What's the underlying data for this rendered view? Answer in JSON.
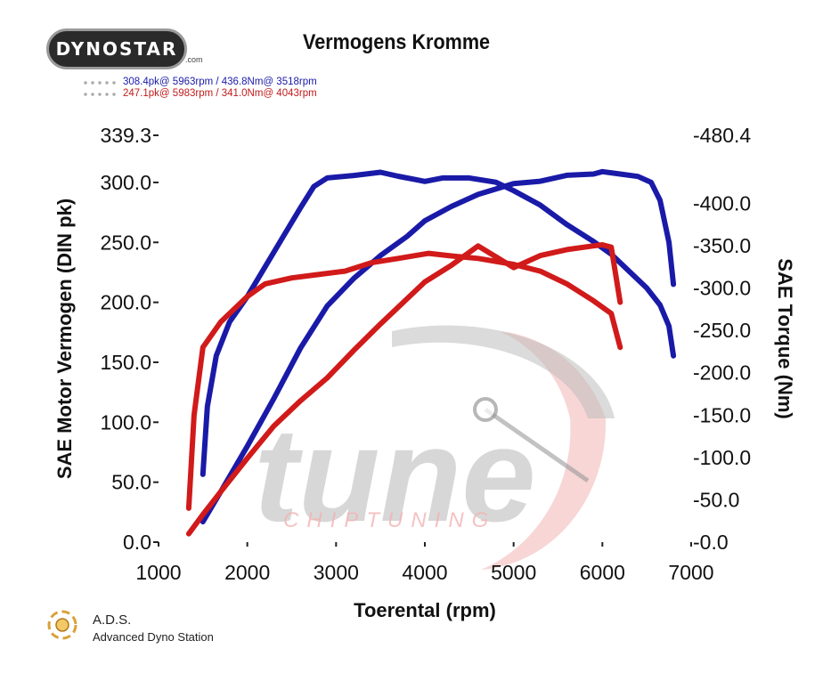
{
  "header": {
    "brand_logo": "DYNOSTAR",
    "brand_suffix": ".com",
    "title": "Vermogens Kromme"
  },
  "legend": {
    "entries": [
      {
        "text": "308.4pk@ 5963rpm / 436.8Nm@ 3518rpm",
        "color": "#1a1aa8"
      },
      {
        "text": "247.1pk@ 5983rpm / 341.0Nm@ 4043rpm",
        "color": "#c21b1b"
      }
    ]
  },
  "footer": {
    "ads_title": "A.D.S.",
    "ads_subtitle": "Advanced Dyno Station"
  },
  "watermark": {
    "word": "tune",
    "subword": "CHIPTUNING"
  },
  "colors": {
    "series_blue": "#1a1aa8",
    "series_red": "#d11a1a",
    "grid": "#c8c8c8",
    "watermark_gray": "#bdbdbd",
    "watermark_red": "#f3b4b4"
  },
  "chart_data": {
    "type": "line",
    "title": "Vermogens Kromme",
    "xlabel": "Toerental (rpm)",
    "ylabel": "SAE Motor Vermogen (DIN pk)",
    "y2label": "SAE Torque (Nm)",
    "xlim": [
      1000,
      7000
    ],
    "ylim": [
      0,
      339.3
    ],
    "y2lim": [
      0,
      480.4
    ],
    "x_ticks": [
      1000,
      2000,
      3000,
      4000,
      5000,
      6000,
      7000
    ],
    "y_ticks": [
      0,
      50,
      100,
      150,
      200,
      250,
      300,
      339.3
    ],
    "y_tick_labels": [
      "0.0",
      "50.0",
      "100.0",
      "150.0",
      "200.0",
      "250.0",
      "300.0",
      "339.3"
    ],
    "y2_ticks": [
      0,
      50,
      100,
      150,
      200,
      250,
      300,
      350,
      400,
      480.4
    ],
    "y2_tick_labels": [
      "-0.0",
      "-50.0",
      "-100.0",
      "-150.0",
      "-200.0",
      "-250.0",
      "-300.0",
      "-350.0",
      "-400.0",
      "-480.4"
    ],
    "grid": true,
    "legend_position": "top-left",
    "series": [
      {
        "color": "blue",
        "axis": "left",
        "kind": "power",
        "x": [
          1500,
          1700,
          2000,
          2300,
          2600,
          2900,
          3200,
          3500,
          3800,
          4000,
          4300,
          4600,
          5000,
          5300,
          5600,
          5900,
          6000,
          6200,
          6400,
          6550,
          6650,
          6750,
          6800
        ],
        "y": [
          17,
          42,
          80,
          120,
          162,
          197,
          220,
          239,
          255,
          268,
          280,
          290,
          299,
          301,
          306,
          307,
          309,
          307,
          305,
          300,
          285,
          250,
          215
        ]
      },
      {
        "color": "blue",
        "axis": "right",
        "kind": "torque",
        "x": [
          1500,
          1550,
          1650,
          1800,
          2000,
          2200,
          2400,
          2600,
          2750,
          2900,
          3200,
          3500,
          3700,
          3900,
          4000,
          4200,
          4500,
          4800,
          5000,
          5300,
          5600,
          5900,
          6100,
          6300,
          6500,
          6650,
          6750,
          6800
        ],
        "y": [
          80,
          160,
          220,
          260,
          290,
          325,
          360,
          395,
          420,
          430,
          433,
          436.8,
          432,
          428,
          426,
          430,
          430,
          425,
          415,
          398,
          375,
          355,
          340,
          320,
          300,
          280,
          255,
          220
        ]
      },
      {
        "color": "red",
        "axis": "left",
        "kind": "power",
        "x": [
          1340,
          1500,
          1700,
          2000,
          2300,
          2600,
          2900,
          3200,
          3500,
          3800,
          4000,
          4300,
          4600,
          5000,
          5300,
          5600,
          5900,
          6000,
          6100,
          6200
        ],
        "y": [
          7,
          23,
          42,
          70,
          97,
          118,
          137,
          160,
          182,
          203,
          217,
          231,
          247,
          229,
          239,
          244,
          247.1,
          248,
          246,
          200
        ]
      },
      {
        "color": "red",
        "axis": "right",
        "kind": "torque",
        "x": [
          1340,
          1400,
          1500,
          1700,
          2000,
          2200,
          2500,
          2800,
          3100,
          3400,
          3700,
          4043,
          4300,
          4600,
          5000,
          5300,
          5600,
          5900,
          6100,
          6200
        ],
        "y": [
          40,
          150,
          230,
          260,
          290,
          305,
          312,
          316,
          320,
          330,
          335,
          341.0,
          338,
          335,
          328,
          320,
          305,
          285,
          270,
          230
        ]
      }
    ]
  }
}
